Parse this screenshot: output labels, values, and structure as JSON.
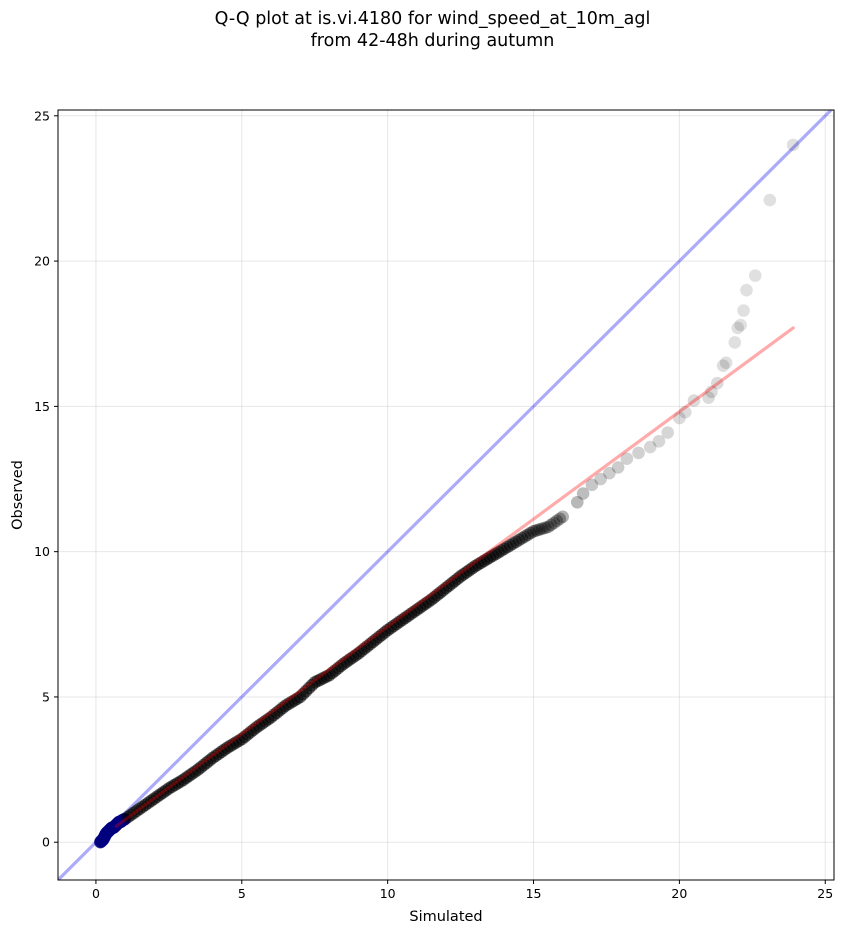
{
  "chart_data": {
    "type": "scatter",
    "title_lines": [
      "Q-Q plot at is.vi.4180 for wind_speed_at_10m_agl",
      "from 42-48h during autumn"
    ],
    "xlabel": "Simulated",
    "ylabel": "Observed",
    "xlim": [
      -1.3,
      25.3
    ],
    "ylim": [
      -1.3,
      25.2
    ],
    "xticks": [
      0,
      5,
      10,
      15,
      20,
      25
    ],
    "yticks": [
      0,
      5,
      10,
      15,
      20,
      25
    ],
    "grid": true,
    "reference_line": {
      "name": "1:1 line",
      "color": "#0000ee",
      "opacity": 0.33
    },
    "fit_line": {
      "x": [
        0.7,
        23.9
      ],
      "y": [
        0.55,
        17.7
      ],
      "color": "#ff0000",
      "opacity": 0.33
    },
    "point_color": "#000000",
    "low_point_color": "#000080",
    "quantiles": {
      "x": [
        0.15,
        0.2,
        0.25,
        0.3,
        0.35,
        0.4,
        0.45,
        0.5,
        0.55,
        0.6,
        0.65,
        0.7,
        0.75,
        0.8,
        0.85,
        0.9,
        1.0,
        1.5,
        2.0,
        2.5,
        3.0,
        3.5,
        4.0,
        4.5,
        5.0,
        5.5,
        6.0,
        6.5,
        7.0,
        7.5,
        8.0,
        8.5,
        9.0,
        9.5,
        10.0,
        10.5,
        11.0,
        11.5,
        12.0,
        12.5,
        13.0,
        13.5,
        14.0,
        14.5,
        15.0,
        15.5,
        16.0,
        16.5,
        16.7,
        17.0,
        17.3,
        17.6,
        17.9,
        18.2,
        18.6,
        19.0,
        19.3,
        19.6,
        20.0,
        20.2,
        20.5,
        21.0,
        21.1,
        21.3,
        21.5,
        21.6,
        21.9,
        22.0,
        22.1,
        22.2,
        22.3,
        22.6,
        23.1,
        23.9
      ],
      "y": [
        0.0,
        0.05,
        0.1,
        0.2,
        0.3,
        0.35,
        0.4,
        0.45,
        0.5,
        0.5,
        0.55,
        0.6,
        0.65,
        0.7,
        0.7,
        0.75,
        0.8,
        1.15,
        1.5,
        1.85,
        2.15,
        2.5,
        2.9,
        3.25,
        3.55,
        3.95,
        4.3,
        4.7,
        5.0,
        5.5,
        5.75,
        6.15,
        6.5,
        6.9,
        7.3,
        7.65,
        8.0,
        8.35,
        8.75,
        9.15,
        9.5,
        9.8,
        10.1,
        10.4,
        10.7,
        10.85,
        11.2,
        11.7,
        12.0,
        12.3,
        12.5,
        12.7,
        12.9,
        13.2,
        13.4,
        13.6,
        13.8,
        14.1,
        14.6,
        14.8,
        15.2,
        15.3,
        15.5,
        15.8,
        16.4,
        16.5,
        17.2,
        17.7,
        17.8,
        18.3,
        19.0,
        19.5,
        22.1,
        24.0
      ],
      "opacity": [
        0.55,
        0.55,
        0.55,
        0.55,
        0.55,
        0.55,
        0.55,
        0.55,
        0.55,
        0.55,
        0.55,
        0.55,
        0.55,
        0.55,
        0.55,
        0.55,
        0.55,
        0.55,
        0.55,
        0.55,
        0.55,
        0.55,
        0.55,
        0.55,
        0.55,
        0.55,
        0.55,
        0.55,
        0.55,
        0.55,
        0.55,
        0.55,
        0.55,
        0.55,
        0.55,
        0.55,
        0.55,
        0.55,
        0.55,
        0.55,
        0.55,
        0.55,
        0.5,
        0.45,
        0.4,
        0.35,
        0.3,
        0.28,
        0.26,
        0.22,
        0.2,
        0.2,
        0.2,
        0.18,
        0.18,
        0.16,
        0.16,
        0.16,
        0.14,
        0.14,
        0.14,
        0.14,
        0.14,
        0.14,
        0.13,
        0.13,
        0.12,
        0.12,
        0.12,
        0.12,
        0.12,
        0.12,
        0.12,
        0.12
      ]
    }
  }
}
